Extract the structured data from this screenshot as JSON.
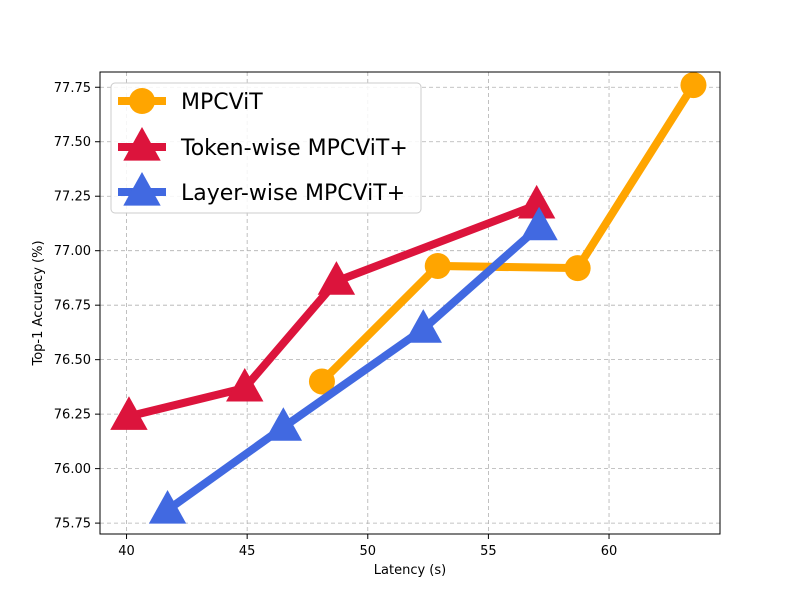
{
  "chart_data": {
    "type": "line",
    "title": "",
    "xlabel": "Latency (s)",
    "ylabel": "Top-1 Accuracy (%)",
    "xlim": [
      38.9,
      64.6
    ],
    "ylim": [
      75.7,
      77.82
    ],
    "xticks": [
      "40",
      "45",
      "50",
      "55",
      "60"
    ],
    "yticks": [
      "75.75",
      "76.00",
      "76.25",
      "76.50",
      "76.75",
      "77.00",
      "77.25",
      "77.50",
      "77.75"
    ],
    "grid": true,
    "legend_position": "top-left",
    "series": [
      {
        "name": "MPCViT",
        "color": "#FFA500",
        "marker": "circle",
        "x": [
          48.1,
          52.9,
          58.7,
          63.5
        ],
        "y": [
          76.4,
          76.93,
          76.92,
          77.76
        ]
      },
      {
        "name": "Token-wise MPCViT+",
        "color": "#DC143C",
        "marker": "triangle",
        "x": [
          40.1,
          44.9,
          48.7,
          57.0
        ],
        "y": [
          76.24,
          76.37,
          76.86,
          77.21
        ]
      },
      {
        "name": "Layer-wise MPCViT+",
        "color": "#4169E1",
        "marker": "triangle",
        "x": [
          41.7,
          46.5,
          52.3,
          57.1
        ],
        "y": [
          75.81,
          76.19,
          76.64,
          77.11
        ]
      }
    ]
  }
}
